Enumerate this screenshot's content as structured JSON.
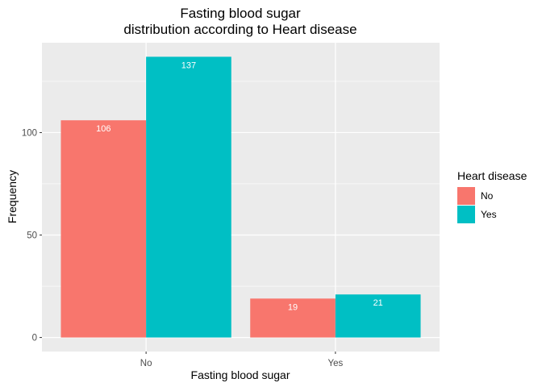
{
  "chart_data": {
    "type": "bar",
    "title_lines": [
      "Fasting blood sugar",
      "distribution according to Heart disease"
    ],
    "xlabel": "Fasting blood sugar",
    "ylabel": "Frequency",
    "categories": [
      "No",
      "Yes"
    ],
    "series": [
      {
        "name": "No",
        "color": "#F8766D",
        "values": [
          106,
          19
        ]
      },
      {
        "name": "Yes",
        "color": "#00BFC4",
        "values": [
          137,
          21
        ]
      }
    ],
    "ylim": [
      -6.85,
      143.85
    ],
    "yticks": [
      0,
      50,
      100
    ],
    "grid": true,
    "legend": {
      "title": "Heart disease",
      "position": "right"
    }
  }
}
